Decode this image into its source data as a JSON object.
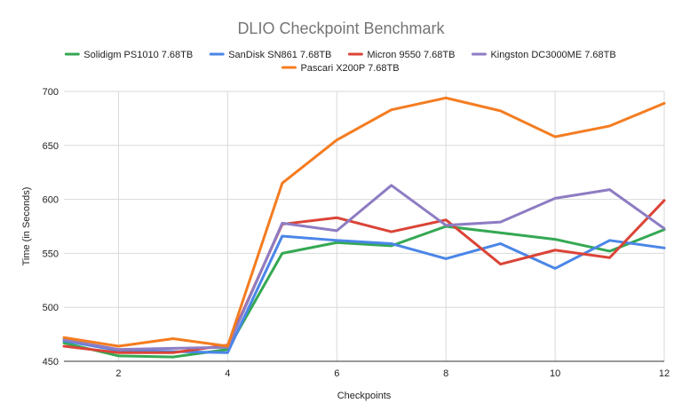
{
  "chart_data": {
    "type": "line",
    "title": "DLIO Checkpoint Benchmark",
    "xlabel": "Checkpoints",
    "ylabel": "Time (in Seconds)",
    "xlim": [
      1,
      12
    ],
    "ylim": [
      450,
      700
    ],
    "x_ticks": [
      2,
      4,
      6,
      8,
      10,
      12
    ],
    "y_ticks": [
      450,
      500,
      550,
      600,
      650,
      700
    ],
    "grid": true,
    "legend_position": "top",
    "x": [
      1,
      2,
      3,
      4,
      5,
      6,
      7,
      8,
      9,
      10,
      11,
      12
    ],
    "series": [
      {
        "name": "Solidigm PS1010 7.68TB",
        "color": "#34a853",
        "values": [
          467,
          455,
          454,
          461,
          550,
          560,
          557,
          575,
          569,
          563,
          552,
          572
        ]
      },
      {
        "name": "SanDisk SN861 7.68TB",
        "color": "#4a86e8",
        "values": [
          469,
          460,
          459,
          458,
          566,
          562,
          559,
          545,
          559,
          536,
          562,
          555
        ]
      },
      {
        "name": "Micron 9550 7.68TB",
        "color": "#db4437",
        "values": [
          464,
          458,
          458,
          465,
          577,
          583,
          570,
          581,
          540,
          553,
          546,
          599
        ]
      },
      {
        "name": "Kingston DC3000ME 7.68TB",
        "color": "#8e7cc3",
        "values": [
          470,
          461,
          462,
          463,
          578,
          571,
          613,
          576,
          579,
          601,
          609,
          573
        ]
      },
      {
        "name": "Pascari X200P 7.68TB",
        "color": "#f47c20",
        "values": [
          472,
          464,
          471,
          464,
          615,
          655,
          683,
          694,
          682,
          658,
          668,
          689
        ]
      }
    ]
  }
}
